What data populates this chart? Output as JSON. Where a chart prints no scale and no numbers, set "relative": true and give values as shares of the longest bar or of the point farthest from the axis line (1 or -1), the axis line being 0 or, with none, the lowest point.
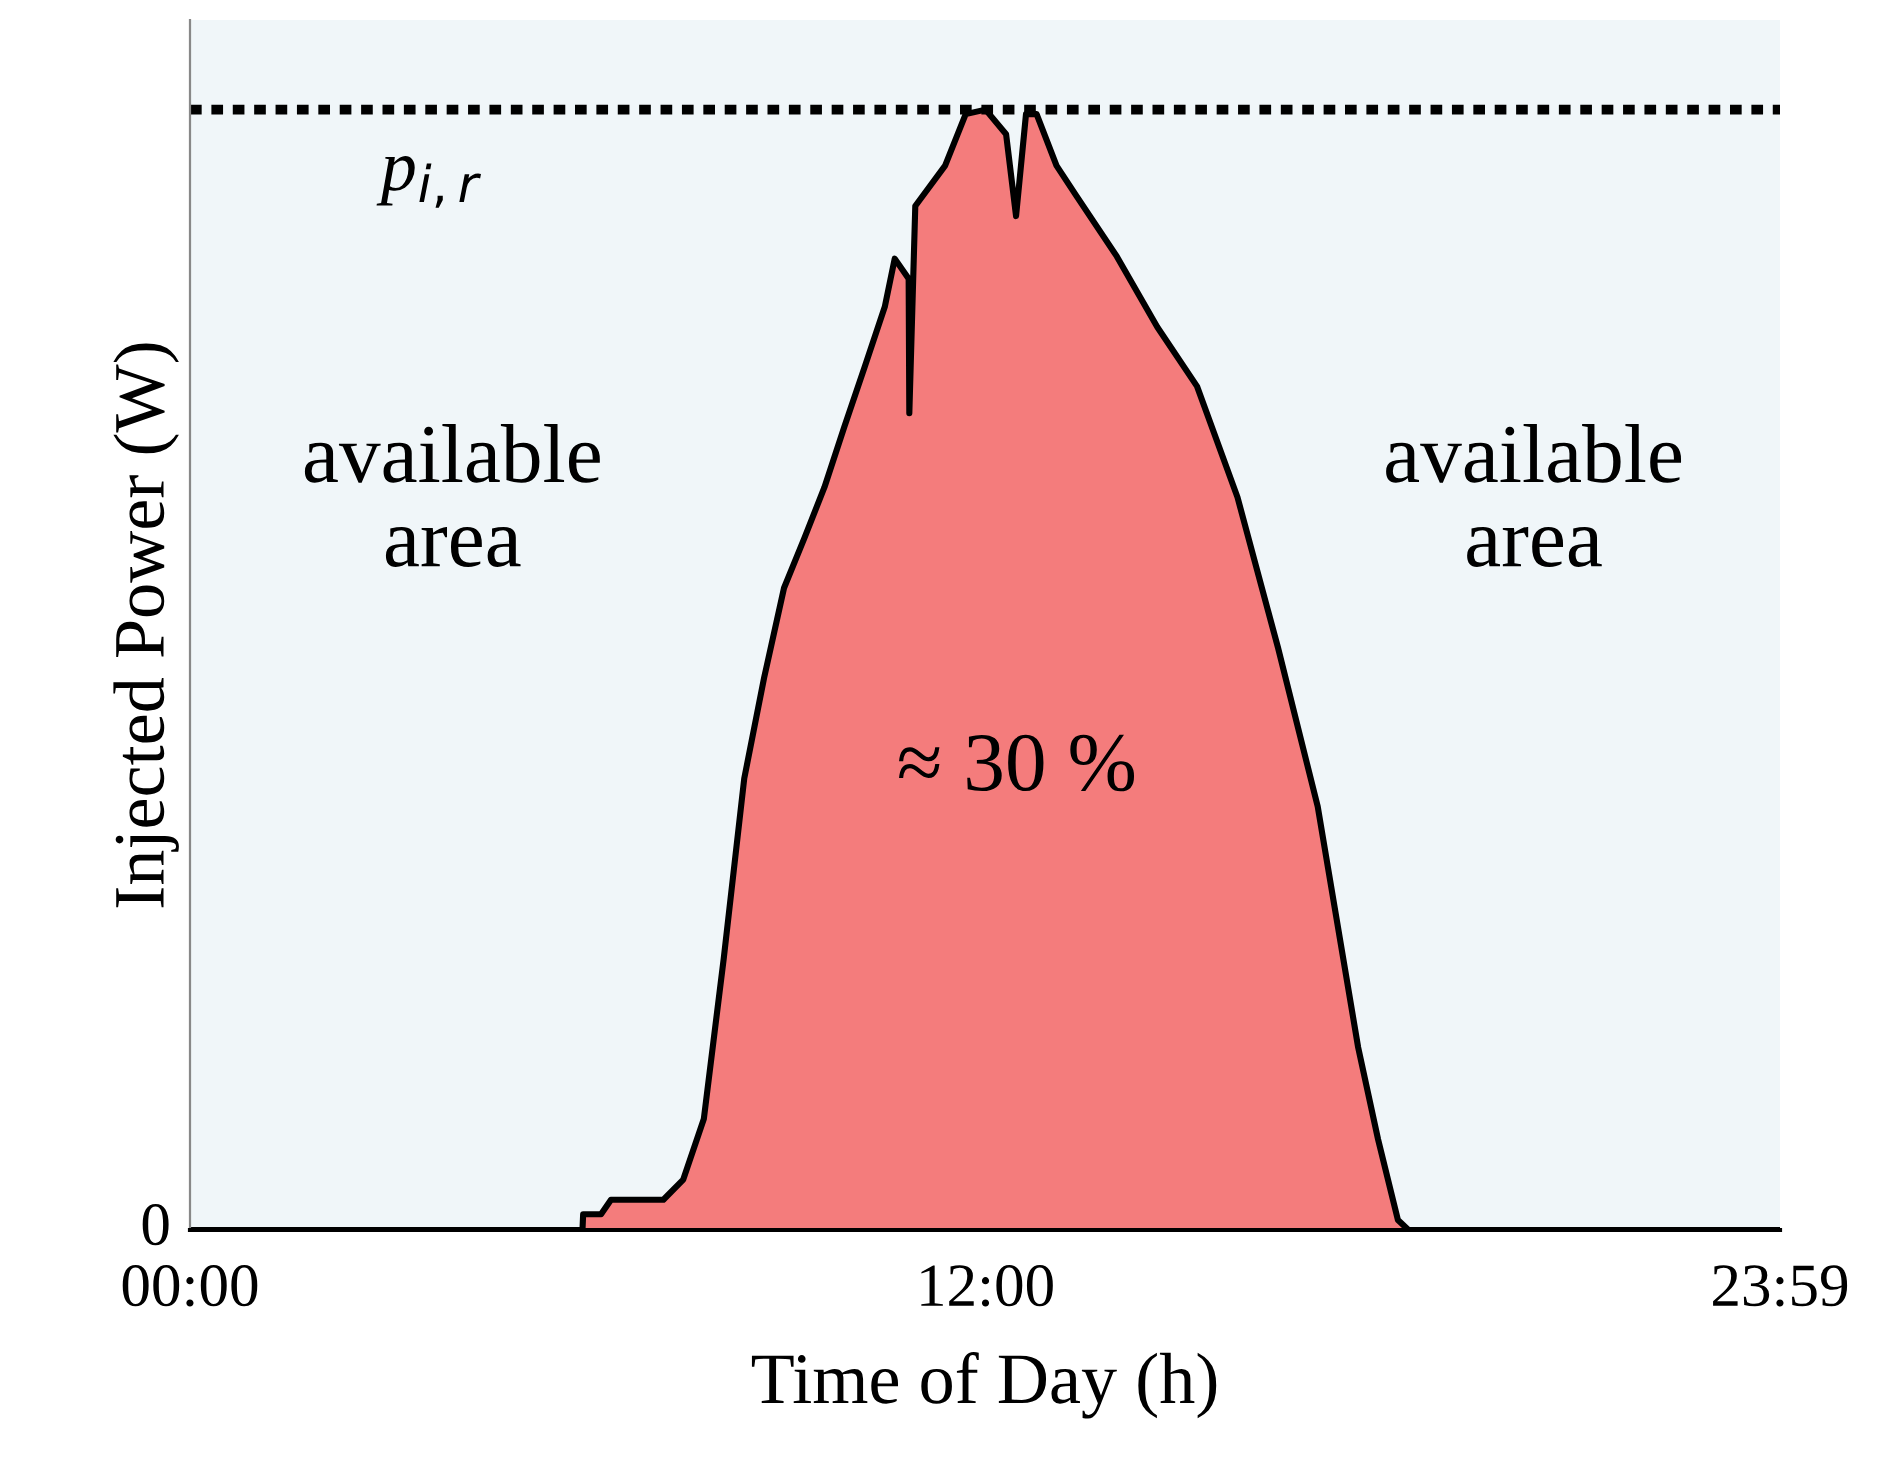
{
  "chart_data": {
    "type": "area",
    "relative": true,
    "xlabel": "Time of Day (h)",
    "ylabel": "Injected Power (W)",
    "x": [
      0,
      5.92,
      5.93,
      6.2,
      6.35,
      7.14,
      7.44,
      7.75,
      8.05,
      8.36,
      8.66,
      8.96,
      9.27,
      9.57,
      9.87,
      10.18,
      10.48,
      10.63,
      10.84,
      10.85,
      10.94,
      11.39,
      11.7,
      12.0,
      12.31,
      12.46,
      12.61,
      12.77,
      13.07,
      13.37,
      13.98,
      14.59,
      15.19,
      15.8,
      16.41,
      17.01,
      17.62,
      17.92,
      18.22,
      18.38,
      23.983
    ],
    "values": [
      0,
      0,
      0.014,
      0.014,
      0.027,
      0.027,
      0.045,
      0.099,
      0.242,
      0.403,
      0.493,
      0.573,
      0.618,
      0.663,
      0.717,
      0.771,
      0.824,
      0.867,
      0.849,
      0.729,
      0.914,
      0.95,
      0.996,
      1.0,
      0.978,
      0.905,
      0.996,
      0.996,
      0.95,
      0.923,
      0.869,
      0.806,
      0.753,
      0.654,
      0.52,
      0.378,
      0.163,
      0.081,
      0.009,
      0,
      0
    ],
    "color": "#f47c7c",
    "xlim": [
      0,
      23.983
    ],
    "xticks": [
      {
        "value": 0,
        "label": "00:00"
      },
      {
        "value": 12,
        "label": "12:00"
      },
      {
        "value": 23.983,
        "label": "23:59"
      }
    ],
    "ref_lines": [
      {
        "axis": "y",
        "value": 1.0,
        "label": "p$_{i,r}$",
        "color": "#000000",
        "line_style": "dotted"
      }
    ],
    "annotations": [
      "available\narea",
      "available\narea",
      "≈ 30 %",
      "0"
    ],
    "grid": false,
    "legend": false
  }
}
